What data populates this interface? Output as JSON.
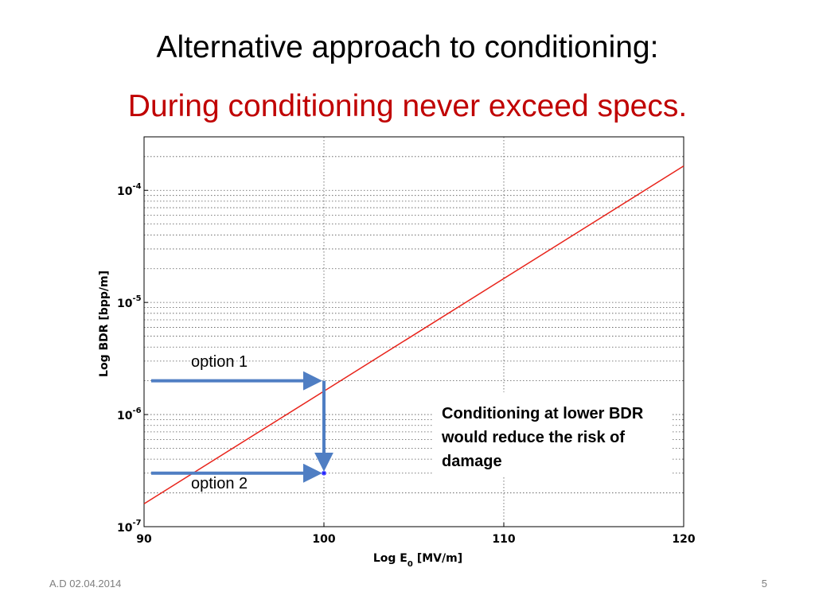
{
  "slide": {
    "title": "Alternative approach to conditioning:",
    "subtitle": "During conditioning never exceed specs.",
    "footer_left": "A.D 02.04.2014",
    "page_number": "5"
  },
  "annotations": {
    "option1": "option 1",
    "option2": "option 2",
    "note_lines": [
      "Conditioning at lower BDR",
      "would reduce the risk of",
      "damage"
    ]
  },
  "colors": {
    "line": "#e8231a",
    "arrow": "#4f7ec3",
    "subtitle": "#c00000"
  },
  "chart_data": {
    "type": "line",
    "xlabel": "Log E",
    "xlabel_sub": "0",
    "xlabel_unit": "[MV/m]",
    "ylabel": "Log BDR [bpp/m]",
    "x_scale": "linear",
    "y_scale": "log",
    "xlim": [
      90,
      120
    ],
    "ylim": [
      1e-07,
      0.0003
    ],
    "grid": true,
    "x_ticks": [
      {
        "value": 90,
        "label": "90"
      },
      {
        "value": 100,
        "label": "100"
      },
      {
        "value": 110,
        "label": "110"
      },
      {
        "value": 120,
        "label": "120"
      }
    ],
    "y_ticks": [
      {
        "value": 1e-07,
        "base": "10",
        "exp": "-7"
      },
      {
        "value": 1e-06,
        "base": "10",
        "exp": "-6"
      },
      {
        "value": 1e-05,
        "base": "10",
        "exp": "-5"
      },
      {
        "value": 0.0001,
        "base": "10",
        "exp": "-4"
      }
    ],
    "series": [
      {
        "x": [
          90,
          120
        ],
        "y": [
          1.6e-07,
          0.000165
        ]
      }
    ],
    "points": [
      {
        "x": 100,
        "y": 3e-07
      }
    ],
    "arrows": [
      {
        "id": "option1",
        "from": [
          90,
          2e-06
        ],
        "to": [
          100,
          2e-06
        ]
      },
      {
        "id": "option2",
        "from": [
          90,
          3e-07
        ],
        "to": [
          100,
          3e-07
        ]
      },
      {
        "id": "drop",
        "from": [
          100,
          2e-06
        ],
        "to": [
          100,
          3e-07
        ]
      }
    ]
  }
}
